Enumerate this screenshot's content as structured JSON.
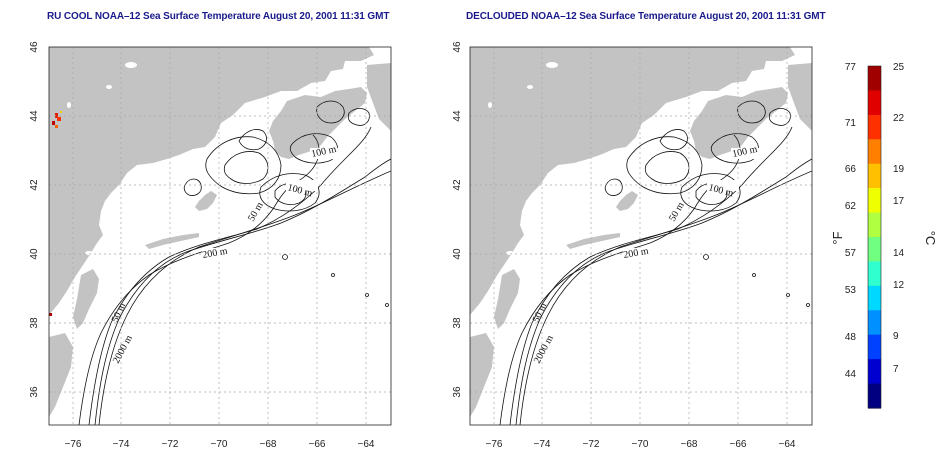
{
  "panels": [
    {
      "title": "RU COOL NOAA–12 Sea Surface Temperature August 20, 2001 11:31 GMT"
    },
    {
      "title": "DECLOUDED NOAA–12 Sea Surface Temperature August 20, 2001 11:31 GMT"
    }
  ],
  "axes": {
    "x_ticks": [
      "−76",
      "−74",
      "−72",
      "−70",
      "−68",
      "−66",
      "−64"
    ],
    "y_ticks": [
      "36",
      "38",
      "40",
      "42",
      "44",
      "46"
    ],
    "lon_range": [
      -77,
      -63
    ],
    "lat_range": [
      35,
      46
    ]
  },
  "contours": {
    "labels": [
      "100 m",
      "100 m",
      "50 m",
      "200 m",
      "50 m",
      "2000 m"
    ]
  },
  "colorbar": {
    "fahrenheit_ticks": [
      "77",
      "71",
      "66",
      "62",
      "57",
      "53",
      "48",
      "44"
    ],
    "celsius_ticks": [
      "25",
      "22",
      "19",
      "17",
      "14",
      "12",
      "9",
      "7"
    ],
    "left_unit": "°F",
    "right_unit": "°C",
    "colors": [
      "#000080",
      "#0000d0",
      "#0040ff",
      "#0090ff",
      "#00d8ff",
      "#30ffd0",
      "#70ff80",
      "#b0ff40",
      "#f0ff00",
      "#ffc000",
      "#ff8000",
      "#ff3000",
      "#e00000",
      "#a00000"
    ]
  },
  "colors": {
    "land": "#c3c3c3",
    "ocean": "#ffffff",
    "grid": "#a8a8a8",
    "title": "#1a1a8c"
  }
}
